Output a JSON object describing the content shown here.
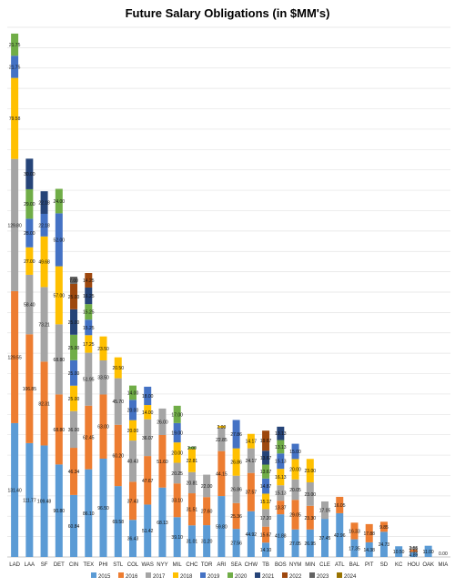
{
  "chart_data": {
    "type": "bar",
    "stacked": true,
    "title": "Future Salary Obligations (in $MM's)",
    "xlabel": "",
    "ylabel": "",
    "ylim": [
      0,
      520
    ],
    "grid": true,
    "legend_position": "bottom",
    "categories": [
      "LAD",
      "LAA",
      "SF",
      "DET",
      "CIN",
      "TEX",
      "PHI",
      "STL",
      "COL",
      "WAS",
      "NYY",
      "MIL",
      "CHC",
      "TOR",
      "ARI",
      "SEA",
      "CHW",
      "TB",
      "BOS",
      "NYM",
      "MIN",
      "CLE",
      "ATL",
      "BAL",
      "PIT",
      "SD",
      "KC",
      "HOU",
      "OAK",
      "MIA"
    ],
    "colors": [
      "#5B9BD5",
      "#ED7D31",
      "#A5A5A5",
      "#FFC000",
      "#4472C4",
      "#70AD47",
      "#264478",
      "#9E480E",
      "#636363",
      "#997300"
    ],
    "series": [
      {
        "name": "2015",
        "values": [
          131.4,
          111.77,
          109.48,
          90.8,
          60.84,
          86.1,
          96.5,
          69.58,
          36.43,
          51.42,
          68.13,
          39.1,
          31.01,
          31.2,
          59.8,
          27.56,
          44.92,
          14.1,
          41.88,
          27.05,
          26.95,
          37.45,
          42.96,
          17.35,
          14.38,
          24.73,
          10.5,
          4.89,
          11.0,
          0.0
        ]
      },
      {
        "name": "2016",
        "values": [
          129.55,
          106.85,
          82.31,
          68.8,
          46.34,
          62.45,
          63.0,
          60.2,
          37.43,
          47.67,
          51.6,
          33.1,
          31.51,
          27.6,
          44.15,
          25.36,
          37.57,
          15.67,
          13.37,
          29.05,
          23.3,
          0,
          16.05,
          16.33,
          17.88,
          9.85,
          0,
          2.55,
          0,
          0
        ]
      },
      {
        "name": "2017",
        "values": [
          129.8,
          58.4,
          73.21,
          68.8,
          36.0,
          51.95,
          33.5,
          45.7,
          40.43,
          36.07,
          26.0,
          20.25,
          20.81,
          22.0,
          22.85,
          26.86,
          24.17,
          17.2,
          15.13,
          20.05,
          23.0,
          17.05,
          0,
          0,
          0,
          0,
          0,
          2.55,
          0,
          0
        ]
      },
      {
        "name": "2018",
        "values": [
          79.58,
          27.0,
          49.68,
          57.0,
          25.0,
          17.25,
          23.5,
          20.5,
          20.0,
          14.0,
          0,
          20.0,
          22.81,
          0,
          2.0,
          26.86,
          14.17,
          15.17,
          16.13,
          20.0,
          23.0,
          0,
          0,
          0,
          0,
          0,
          0,
          0,
          0,
          0
        ]
      },
      {
        "name": "2019",
        "values": [
          21.75,
          28.0,
          22.18,
          52.0,
          25.0,
          15.25,
          0,
          0,
          20.0,
          18.0,
          0,
          19.0,
          0,
          0,
          0,
          27.86,
          0,
          14.87,
          15.13,
          15.0,
          0,
          0,
          0,
          0,
          0,
          0,
          0,
          0,
          0,
          0
        ]
      },
      {
        "name": "2020",
        "values": [
          21.75,
          29.0,
          0,
          24.0,
          25.0,
          15.25,
          0,
          0,
          14.0,
          0,
          0,
          17.0,
          2.0,
          0,
          0,
          0,
          0,
          13.67,
          13.13,
          0,
          0,
          0,
          0,
          0,
          0,
          0,
          0,
          0,
          0,
          0
        ]
      },
      {
        "name": "2021",
        "values": [
          0,
          30.0,
          22.18,
          0,
          25.0,
          16.25,
          0,
          0,
          0,
          0,
          0,
          0,
          0,
          0,
          0,
          0,
          0,
          13.67,
          13.13,
          0,
          0,
          0,
          0,
          0,
          0,
          0,
          0,
          0,
          0,
          0
        ]
      },
      {
        "name": "2022",
        "values": [
          0,
          0,
          0,
          0,
          25.0,
          14.25,
          0,
          0,
          0,
          0,
          0,
          0,
          0,
          0,
          0,
          0,
          0,
          19.67,
          0,
          0,
          0,
          0,
          0,
          0,
          0,
          0,
          0,
          0,
          0,
          0
        ]
      },
      {
        "name": "2023",
        "values": [
          0,
          0,
          0,
          0,
          7.0,
          0,
          0,
          0,
          0,
          0,
          0,
          0,
          0,
          0,
          0,
          0,
          0,
          0,
          0,
          0,
          0,
          0,
          0,
          0,
          0,
          0,
          0,
          0,
          0,
          0
        ]
      },
      {
        "name": "2024",
        "values": [
          0,
          0,
          0,
          0,
          0,
          0,
          0,
          0,
          0,
          0,
          0,
          0,
          0,
          0,
          0,
          0,
          0,
          0,
          0,
          0,
          0,
          0,
          0,
          0,
          0,
          0,
          0,
          0,
          0,
          0
        ]
      }
    ]
  }
}
